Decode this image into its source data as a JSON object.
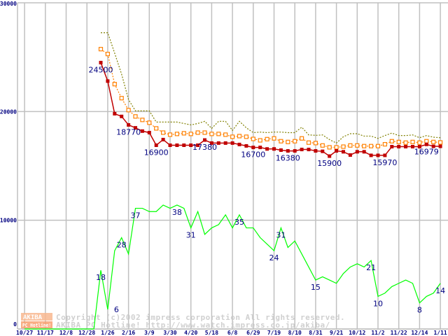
{
  "chart_data": {
    "type": "line",
    "title": "",
    "xlabel": "",
    "ylabel": "",
    "ylim": [
      0,
      30000
    ],
    "grid": true,
    "y_ticks": [
      "0",
      "10000",
      "20000",
      "30000"
    ],
    "x_tick_labels": [
      "10/27",
      "11/17",
      "12/8",
      "12/28",
      "1/26",
      "2/16",
      "3/9",
      "3/30",
      "4/20",
      "5/18",
      "6/8",
      "6/29",
      "7/19",
      "8/10",
      "8/31",
      "9/21",
      "10/12",
      "11/2",
      "11/22",
      "12/14",
      "1/11"
    ],
    "x_note": "weekly samples; week index 0 = one week before 1/26, gridlines every 3 weeks",
    "series": [
      {
        "name": "max_price",
        "color": "#808000",
        "style": "dotted",
        "start_week": 0,
        "values": [
          27250,
          27250,
          25370,
          23440,
          21100,
          20060,
          20060,
          20060,
          19030,
          19030,
          19030,
          19030,
          18900,
          18770,
          18900,
          19100,
          18450,
          19100,
          19100,
          18260,
          19100,
          18500,
          18060,
          18110,
          18060,
          18110,
          18110,
          18060,
          18060,
          18560,
          17850,
          17810,
          17850,
          17420,
          17100,
          17680,
          17960,
          17960,
          17740,
          17740,
          17530,
          17790,
          18020,
          17790,
          17790,
          17850,
          17590,
          17790,
          17640,
          17590
        ]
      },
      {
        "name": "avg_price",
        "color": "#ff8000",
        "style": "dotted-square",
        "start_week": 0,
        "values": [
          25740,
          25290,
          22520,
          21230,
          20130,
          19550,
          19230,
          18970,
          18450,
          18060,
          17870,
          17940,
          18000,
          17940,
          18060,
          18060,
          17940,
          17940,
          17870,
          17680,
          17740,
          17680,
          17480,
          17350,
          17460,
          17530,
          17270,
          17200,
          17270,
          17530,
          17140,
          17100,
          16880,
          16710,
          16710,
          16770,
          16880,
          16880,
          16820,
          16820,
          16820,
          16990,
          17270,
          17200,
          17140,
          17200,
          17140,
          17270,
          17200,
          17160
        ]
      },
      {
        "name": "min_price",
        "color": "#c00000",
        "style": "solid-square",
        "start_week": 0,
        "values": [
          24500,
          22800,
          19800,
          19550,
          18770,
          18500,
          18200,
          18060,
          16900,
          17420,
          16900,
          16900,
          16900,
          16900,
          16900,
          17380,
          17100,
          17100,
          17100,
          17100,
          16970,
          16840,
          16700,
          16700,
          16560,
          16560,
          16450,
          16380,
          16380,
          16510,
          16510,
          16380,
          16340,
          15900,
          16380,
          16300,
          16000,
          16300,
          16300,
          15970,
          15970,
          15970,
          16770,
          16770,
          16770,
          16770,
          16770,
          16979,
          16800,
          16800
        ],
        "labels": [
          {
            "week": 0,
            "text": "24500"
          },
          {
            "week": 4,
            "text": "18770"
          },
          {
            "week": 8,
            "text": "16900"
          },
          {
            "week": 15,
            "text": "17380"
          },
          {
            "week": 22,
            "text": "16700"
          },
          {
            "week": 27,
            "text": "16380"
          },
          {
            "week": 33,
            "text": "15900"
          },
          {
            "week": 41,
            "text": "15970"
          },
          {
            "week": 47,
            "text": "16979"
          }
        ]
      },
      {
        "name": "shop_count",
        "color": "#00ff00",
        "style": "solid",
        "scale": 300,
        "start_week": -11,
        "values": [
          0,
          0,
          0,
          0,
          0,
          0,
          0,
          0,
          0,
          0,
          0,
          18,
          6,
          24,
          28,
          23,
          37,
          37,
          36,
          36,
          38,
          37,
          38,
          37,
          31,
          36,
          29,
          31,
          32,
          35,
          31,
          35,
          31,
          31,
          28,
          26,
          24,
          31,
          25,
          27,
          23,
          19,
          15,
          16,
          15,
          14,
          17,
          19,
          20,
          19,
          21,
          10,
          11,
          13,
          14,
          15,
          14,
          8,
          10,
          11,
          14
        ],
        "labels": [
          {
            "week": 0,
            "text": "18"
          },
          {
            "week": 1,
            "text": "6"
          },
          {
            "week": 3,
            "text": "28"
          },
          {
            "week": 5,
            "text": "37"
          },
          {
            "week": 11,
            "text": "38"
          },
          {
            "week": 13,
            "text": "31"
          },
          {
            "week": 20,
            "text": "35"
          },
          {
            "week": 25,
            "text": "24"
          },
          {
            "week": 26,
            "text": "31"
          },
          {
            "week": 31,
            "text": "15"
          },
          {
            "week": 39,
            "text": "21"
          },
          {
            "week": 40,
            "text": "10"
          },
          {
            "week": 46,
            "text": "8"
          },
          {
            "week": 49,
            "text": "14"
          }
        ]
      }
    ]
  },
  "watermark": {
    "logo_top": "AKIBA",
    "logo_bottom": "PC Hotline!",
    "line1": "Copyright (c)2002 impress corporation All rights reserved.",
    "line2": "AKIBA PC Hotline!  http://www.watch.impress.co.jp/akiba/"
  }
}
